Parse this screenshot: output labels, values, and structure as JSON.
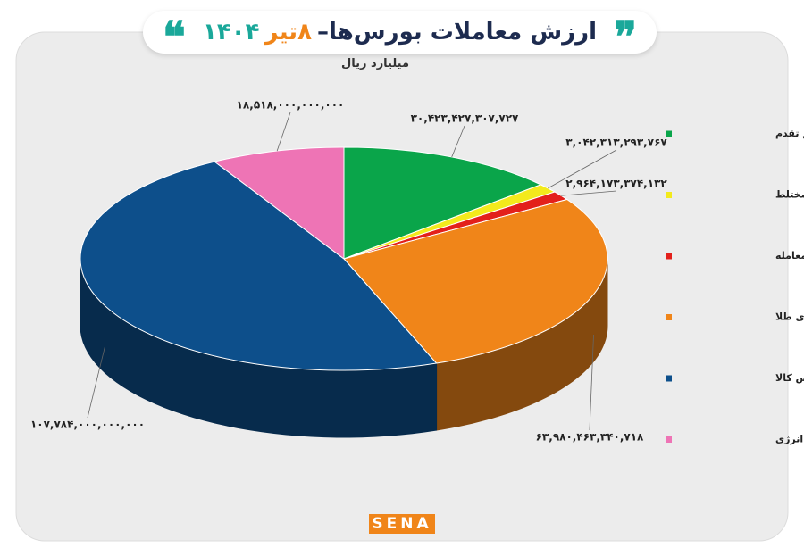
{
  "chart_data": {
    "type": "pie",
    "title": "ارزش معاملات بورس‌ها–",
    "title_day": "۸تیر",
    "title_year": "۱۴۰۴",
    "subtitle": "میلیارد ریال",
    "categories": [
      "سهام و حق تقدم",
      "صندوق سهامی و مختلط",
      "اختیارمعامله",
      "صندوق های طلا",
      "بازار فیزیکی بورس کالا",
      "بازار فیزیکی بورس انرژی"
    ],
    "values": [
      30423427307727,
      3042313293767,
      2964173374132,
      63980463340718,
      107784000000000,
      18518000000000
    ],
    "value_labels": [
      "۳۰,۴۲۳,۴۲۷,۳۰۷,۷۲۷",
      "۳,۰۴۲,۳۱۳,۲۹۳,۷۶۷",
      "۲,۹۶۴,۱۷۳,۳۷۴,۱۳۲",
      "۶۳,۹۸۰,۴۶۳,۳۴۰,۷۱۸",
      "۱۰۷,۷۸۴,۰۰۰,۰۰۰,۰۰۰",
      "۱۸,۵۱۸,۰۰۰,۰۰۰,۰۰۰"
    ],
    "colors": [
      "#0aa54a",
      "#f3ea1c",
      "#e3201b",
      "#f08519",
      "#0d4f8b",
      "#ee74b5"
    ],
    "legend": "right"
  },
  "footer": {
    "brand": "SENA"
  }
}
